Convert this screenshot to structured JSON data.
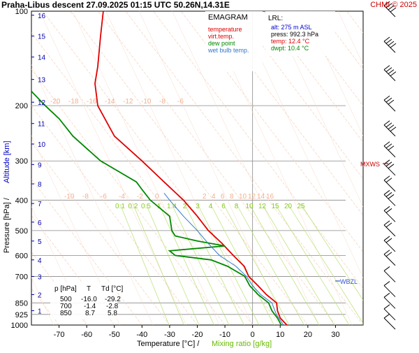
{
  "header": {
    "title": "Praha-Libus   descent   27.09.2025 01:15 UTC  50.26N,14.31E",
    "copyright": "CHMI © 2025"
  },
  "legend": {
    "title": "EMAGRAM",
    "items": [
      {
        "label": "temperature",
        "color": "#e00000"
      },
      {
        "label": "virt.temp.",
        "color": "#e00000"
      },
      {
        "label": "dew point",
        "color": "#008800"
      },
      {
        "label": "wet bulb temp.",
        "color": "#3377cc"
      }
    ]
  },
  "lrl": {
    "title": "LRL:",
    "lines": [
      {
        "text": "alt: 275 m ASL",
        "color": "#0000cc"
      },
      {
        "text": "press: 992.3 hPa",
        "color": "#000000"
      },
      {
        "text": "temp: 12.4 °C",
        "color": "#e00000"
      },
      {
        "text": "dwpt: 10.4 °C",
        "color": "#008800"
      }
    ]
  },
  "levels_table": {
    "headers": [
      "p [hPa]",
      "T",
      "Td [°C]"
    ],
    "rows": [
      [
        "500",
        "-16.0",
        "-29.2"
      ],
      [
        "700",
        "-1.4",
        "-2.8"
      ],
      [
        "850",
        "8.7",
        "5.8"
      ]
    ]
  },
  "markers": {
    "mxws": "MXWS",
    "wbzl": "WBZL"
  },
  "axes": {
    "ylabel_pressure": "Pressure [hPa]  /",
    "ylabel_altitude": "Altitude [km]",
    "xlabel_temp": "Temperature [°C]  /",
    "xlabel_mix": "Mixing ratio [g/kg]"
  },
  "chart_data": {
    "type": "line",
    "x_axis": {
      "label": "Temperature [°C]",
      "range": [
        -80,
        40
      ],
      "ticks": [
        -70,
        -60,
        -50,
        -40,
        -30,
        -20,
        -10,
        0,
        10,
        20,
        30
      ]
    },
    "y_axis": {
      "label": "Pressure [hPa]",
      "scale": "log",
      "range": [
        1000,
        100
      ],
      "ticks": [
        100,
        200,
        300,
        400,
        500,
        600,
        700,
        850,
        925,
        1000
      ]
    },
    "altitude_ticks_km": [
      1,
      2,
      3,
      4,
      5,
      6,
      7,
      8,
      9,
      10,
      11,
      12,
      13,
      14,
      15,
      16
    ],
    "isotherm_labels_upper": [
      "-20",
      "-18",
      "-16",
      "-14",
      "-12",
      "-10",
      "-8",
      "-6"
    ],
    "isotherm_labels_lower": [
      "-10",
      "-8",
      "-6",
      "-4",
      "-2",
      "0",
      "2",
      "4",
      "6",
      "8",
      "10",
      "12",
      "14",
      "16"
    ],
    "mixing_ratio_labels": [
      "0.1",
      "0.2",
      "0.5",
      "1",
      "1.4",
      "2",
      "3",
      "4",
      "6",
      "8",
      "10",
      "12",
      "15",
      "20",
      "25"
    ],
    "series": [
      {
        "name": "temperature",
        "color": "#e00000",
        "points": [
          [
            1000,
            12.4
          ],
          [
            950,
            10
          ],
          [
            925,
            9.5
          ],
          [
            900,
            9
          ],
          [
            850,
            8.7
          ],
          [
            800,
            5
          ],
          [
            750,
            2
          ],
          [
            700,
            -1.4
          ],
          [
            650,
            -3
          ],
          [
            600,
            -7
          ],
          [
            550,
            -11
          ],
          [
            500,
            -16
          ],
          [
            450,
            -20
          ],
          [
            400,
            -25
          ],
          [
            350,
            -32
          ],
          [
            300,
            -40
          ],
          [
            250,
            -50
          ],
          [
            200,
            -56
          ],
          [
            170,
            -57
          ],
          [
            150,
            -56
          ],
          [
            120,
            -55
          ],
          [
            100,
            -54
          ]
        ]
      },
      {
        "name": "dew point",
        "color": "#008800",
        "points": [
          [
            1000,
            10.4
          ],
          [
            950,
            9
          ],
          [
            925,
            8
          ],
          [
            900,
            7
          ],
          [
            850,
            5.8
          ],
          [
            800,
            2
          ],
          [
            750,
            -1
          ],
          [
            700,
            -2.8
          ],
          [
            650,
            -9
          ],
          [
            620,
            -15
          ],
          [
            600,
            -28
          ],
          [
            580,
            -30
          ],
          [
            560,
            -10
          ],
          [
            540,
            -20
          ],
          [
            520,
            -28
          ],
          [
            500,
            -29.2
          ],
          [
            450,
            -30
          ],
          [
            400,
            -37
          ],
          [
            370,
            -40
          ],
          [
            350,
            -42
          ],
          [
            300,
            -55
          ],
          [
            250,
            -65
          ],
          [
            220,
            -70
          ],
          [
            200,
            -75
          ],
          [
            180,
            -80
          ]
        ]
      },
      {
        "name": "wet bulb temp.",
        "color": "#3377cc",
        "points": [
          [
            1000,
            11.2
          ],
          [
            925,
            8.6
          ],
          [
            850,
            7
          ],
          [
            800,
            3
          ],
          [
            750,
            0
          ],
          [
            700,
            -2.2
          ],
          [
            650,
            -6
          ],
          [
            600,
            -12
          ],
          [
            550,
            -16
          ],
          [
            500,
            -20
          ],
          [
            450,
            -25
          ],
          [
            400,
            -30
          ],
          [
            380,
            -32
          ]
        ]
      }
    ],
    "wind_profile_note": "wind barbs along right edge"
  }
}
